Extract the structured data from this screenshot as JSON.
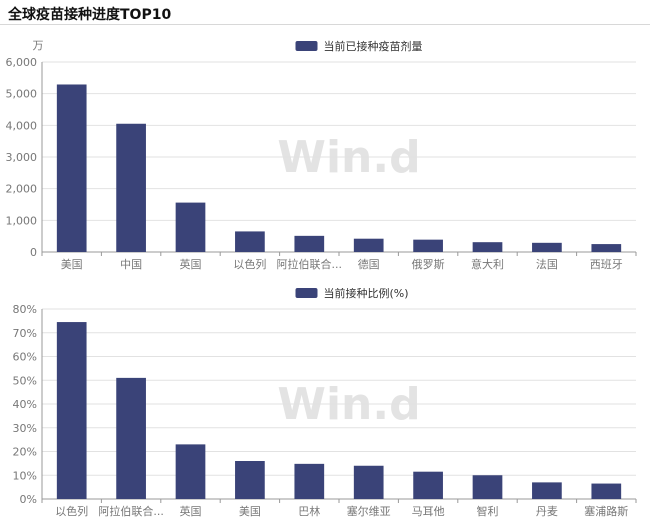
{
  "title": "全球疫苗接种进度TOP10",
  "watermark": "Win.d",
  "bar_color": "#3a4378",
  "chart_data": [
    {
      "type": "bar",
      "legend": "当前已接种疫苗剂量",
      "unit": "万",
      "categories": [
        "美国",
        "中国",
        "英国",
        "以色列",
        "阿拉伯联合...",
        "德国",
        "俄罗斯",
        "意大利",
        "法国",
        "西班牙"
      ],
      "values": [
        5290,
        4050,
        1560,
        650,
        510,
        420,
        390,
        310,
        290,
        250
      ],
      "ylim": [
        0,
        6000
      ],
      "yticks": [
        "0",
        "1,000",
        "2,000",
        "3,000",
        "4,000",
        "5,000",
        "6,000"
      ],
      "legend_placement": "top-center",
      "grid": true
    },
    {
      "type": "bar",
      "legend": "当前接种比例(%)",
      "categories": [
        "以色列",
        "阿拉伯联合...",
        "英国",
        "美国",
        "巴林",
        "塞尔维亚",
        "马耳他",
        "智利",
        "丹麦",
        "塞浦路斯"
      ],
      "values": [
        74.5,
        51,
        23,
        16,
        14.8,
        14,
        11.5,
        10,
        7,
        6.5
      ],
      "ylim": [
        0,
        80
      ],
      "yticks": [
        "0%",
        "10%",
        "20%",
        "30%",
        "40%",
        "50%",
        "60%",
        "70%",
        "80%"
      ],
      "legend_placement": "top-center",
      "grid": true
    }
  ]
}
